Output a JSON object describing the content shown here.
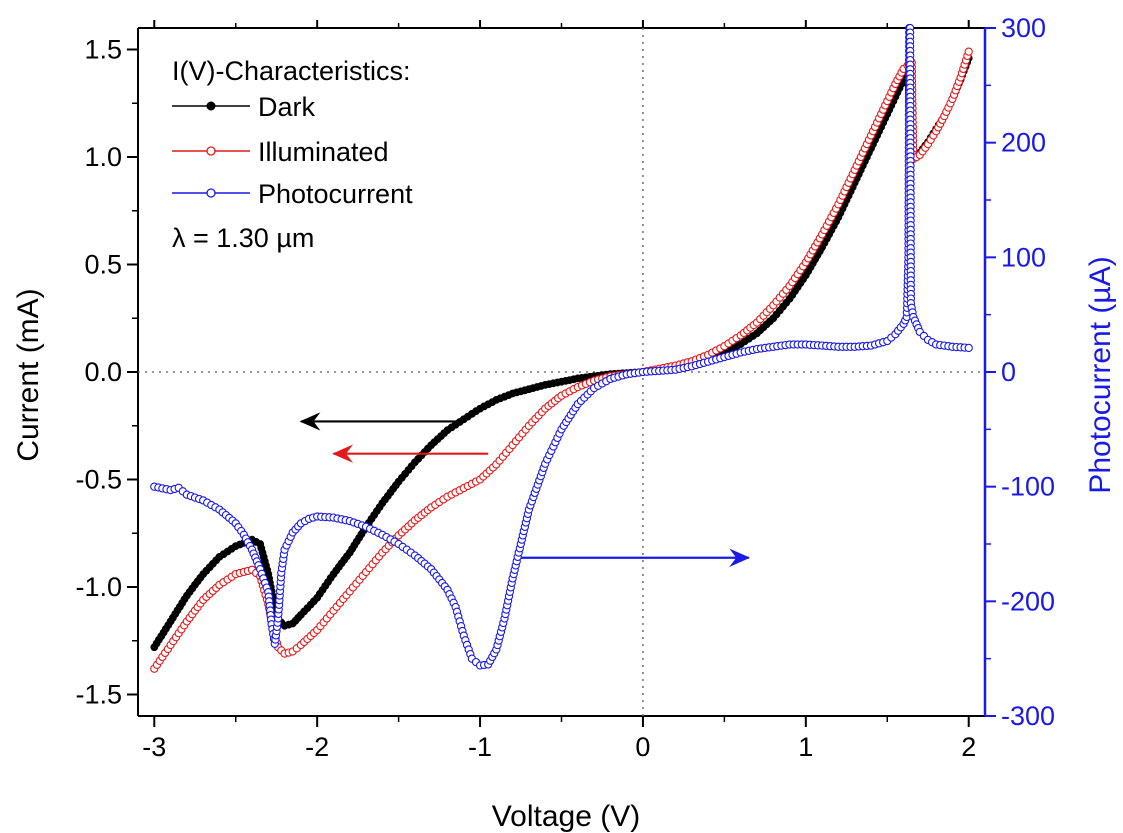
{
  "chart_data": {
    "type": "scatter",
    "xlabel": "Voltage (V)",
    "ylabel": "Current (mA)",
    "y2label": "Photocurrent (µA)",
    "xlim": [
      -3.1,
      2.1
    ],
    "ylim": [
      -1.6,
      1.6
    ],
    "y2lim": [
      -300,
      300
    ],
    "x_ticks": [
      -3,
      -2,
      -1,
      0,
      1,
      2
    ],
    "y_ticks": [
      -1.5,
      -1.0,
      -0.5,
      0.0,
      0.5,
      1.0,
      1.5
    ],
    "y2_ticks": [
      -300,
      -200,
      -100,
      0,
      100,
      200,
      300
    ],
    "x_tick_labels": [
      "-3",
      "-2",
      "-1",
      "0",
      "1",
      "2"
    ],
    "y_tick_labels": [
      "-1.5",
      "-1.0",
      "-0.5",
      "0.0",
      "0.5",
      "1.0",
      "1.5"
    ],
    "y2_tick_labels": [
      "-300",
      "-200",
      "-100",
      "0",
      "100",
      "200",
      "300"
    ],
    "legend": {
      "title": "I(V)-Characteristics:",
      "placement": "top-left",
      "entries": [
        "Dark",
        "Illuminated",
        "Photocurrent"
      ],
      "note": "λ = 1.30 µm"
    },
    "reference_lines": {
      "x0_dotted": true,
      "y0_dotted": true
    },
    "arrows": [
      {
        "series": "Dark",
        "axis": "left",
        "y": -0.23,
        "x_from": -1.1,
        "x_to": -2.1
      },
      {
        "series": "Illuminated",
        "axis": "left",
        "y": -0.38,
        "x_from": -0.95,
        "x_to": -1.9
      },
      {
        "series": "Photocurrent",
        "axis": "right",
        "y": -162,
        "x_from": -0.75,
        "x_to": 0.65
      }
    ],
    "series": [
      {
        "name": "Dark",
        "axis": "left",
        "color": "#000000",
        "marker": "filled-circle",
        "points": [
          [
            -3.0,
            -1.28
          ],
          [
            -2.9,
            -1.16
          ],
          [
            -2.8,
            -1.04
          ],
          [
            -2.7,
            -0.94
          ],
          [
            -2.6,
            -0.86
          ],
          [
            -2.5,
            -0.81
          ],
          [
            -2.4,
            -0.78
          ],
          [
            -2.35,
            -0.8
          ],
          [
            -2.3,
            -0.94
          ],
          [
            -2.27,
            -1.06
          ],
          [
            -2.24,
            -1.15
          ],
          [
            -2.2,
            -1.18
          ],
          [
            -2.15,
            -1.17
          ],
          [
            -2.1,
            -1.13
          ],
          [
            -2.0,
            -1.05
          ],
          [
            -1.9,
            -0.94
          ],
          [
            -1.8,
            -0.84
          ],
          [
            -1.7,
            -0.72
          ],
          [
            -1.6,
            -0.61
          ],
          [
            -1.5,
            -0.51
          ],
          [
            -1.4,
            -0.42
          ],
          [
            -1.3,
            -0.34
          ],
          [
            -1.2,
            -0.27
          ],
          [
            -1.1,
            -0.22
          ],
          [
            -1.0,
            -0.17
          ],
          [
            -0.9,
            -0.13
          ],
          [
            -0.8,
            -0.1
          ],
          [
            -0.7,
            -0.08
          ],
          [
            -0.6,
            -0.06
          ],
          [
            -0.5,
            -0.045
          ],
          [
            -0.4,
            -0.03
          ],
          [
            -0.3,
            -0.02
          ],
          [
            -0.2,
            -0.01
          ],
          [
            -0.1,
            -0.005
          ],
          [
            0.0,
            0.0
          ],
          [
            0.1,
            0.01
          ],
          [
            0.2,
            0.025
          ],
          [
            0.3,
            0.04
          ],
          [
            0.4,
            0.06
          ],
          [
            0.5,
            0.09
          ],
          [
            0.6,
            0.13
          ],
          [
            0.7,
            0.18
          ],
          [
            0.8,
            0.25
          ],
          [
            0.9,
            0.34
          ],
          [
            1.0,
            0.45
          ],
          [
            1.1,
            0.58
          ],
          [
            1.2,
            0.72
          ],
          [
            1.3,
            0.88
          ],
          [
            1.4,
            1.04
          ],
          [
            1.5,
            1.2
          ],
          [
            1.55,
            1.28
          ],
          [
            1.6,
            1.36
          ],
          [
            1.63,
            1.4
          ],
          [
            1.64,
            1.05
          ],
          [
            1.65,
            1.0
          ],
          [
            1.7,
            1.02
          ],
          [
            1.75,
            1.07
          ],
          [
            1.8,
            1.13
          ],
          [
            1.85,
            1.19
          ],
          [
            1.9,
            1.27
          ],
          [
            1.95,
            1.36
          ],
          [
            2.0,
            1.46
          ]
        ]
      },
      {
        "name": "Illuminated",
        "axis": "left",
        "color": "#e41a1a",
        "marker": "open-circle",
        "points": [
          [
            -3.0,
            -1.38
          ],
          [
            -2.9,
            -1.27
          ],
          [
            -2.8,
            -1.16
          ],
          [
            -2.7,
            -1.06
          ],
          [
            -2.6,
            -0.99
          ],
          [
            -2.5,
            -0.94
          ],
          [
            -2.4,
            -0.92
          ],
          [
            -2.35,
            -0.95
          ],
          [
            -2.3,
            -1.08
          ],
          [
            -2.27,
            -1.2
          ],
          [
            -2.24,
            -1.28
          ],
          [
            -2.2,
            -1.31
          ],
          [
            -2.15,
            -1.3
          ],
          [
            -2.1,
            -1.27
          ],
          [
            -2.0,
            -1.2
          ],
          [
            -1.9,
            -1.11
          ],
          [
            -1.8,
            -1.02
          ],
          [
            -1.7,
            -0.93
          ],
          [
            -1.6,
            -0.84
          ],
          [
            -1.5,
            -0.76
          ],
          [
            -1.4,
            -0.69
          ],
          [
            -1.3,
            -0.63
          ],
          [
            -1.2,
            -0.58
          ],
          [
            -1.1,
            -0.54
          ],
          [
            -1.0,
            -0.5
          ],
          [
            -0.9,
            -0.43
          ],
          [
            -0.8,
            -0.34
          ],
          [
            -0.7,
            -0.25
          ],
          [
            -0.6,
            -0.17
          ],
          [
            -0.5,
            -0.11
          ],
          [
            -0.4,
            -0.07
          ],
          [
            -0.3,
            -0.04
          ],
          [
            -0.2,
            -0.02
          ],
          [
            -0.1,
            -0.01
          ],
          [
            0.0,
            0.0
          ],
          [
            0.1,
            0.015
          ],
          [
            0.2,
            0.03
          ],
          [
            0.3,
            0.05
          ],
          [
            0.4,
            0.08
          ],
          [
            0.5,
            0.12
          ],
          [
            0.6,
            0.17
          ],
          [
            0.7,
            0.23
          ],
          [
            0.8,
            0.31
          ],
          [
            0.9,
            0.4
          ],
          [
            1.0,
            0.51
          ],
          [
            1.1,
            0.64
          ],
          [
            1.2,
            0.78
          ],
          [
            1.3,
            0.94
          ],
          [
            1.4,
            1.1
          ],
          [
            1.5,
            1.26
          ],
          [
            1.55,
            1.34
          ],
          [
            1.6,
            1.41
          ],
          [
            1.65,
            1.44
          ],
          [
            1.66,
            0.99
          ],
          [
            1.7,
            1.01
          ],
          [
            1.75,
            1.06
          ],
          [
            1.8,
            1.12
          ],
          [
            1.85,
            1.19
          ],
          [
            1.9,
            1.27
          ],
          [
            1.95,
            1.37
          ],
          [
            2.0,
            1.49
          ]
        ]
      },
      {
        "name": "Photocurrent",
        "axis": "right",
        "color": "#1a1ae6",
        "marker": "open-circle",
        "points": [
          [
            -3.0,
            -100
          ],
          [
            -2.9,
            -103
          ],
          [
            -2.85,
            -101
          ],
          [
            -2.8,
            -107
          ],
          [
            -2.7,
            -112
          ],
          [
            -2.6,
            -120
          ],
          [
            -2.5,
            -132
          ],
          [
            -2.45,
            -142
          ],
          [
            -2.4,
            -155
          ],
          [
            -2.35,
            -172
          ],
          [
            -2.3,
            -192
          ],
          [
            -2.28,
            -220
          ],
          [
            -2.26,
            -237
          ],
          [
            -2.24,
            -215
          ],
          [
            -2.22,
            -175
          ],
          [
            -2.2,
            -155
          ],
          [
            -2.15,
            -140
          ],
          [
            -2.1,
            -132
          ],
          [
            -2.05,
            -128
          ],
          [
            -2.0,
            -126
          ],
          [
            -1.9,
            -127
          ],
          [
            -1.8,
            -130
          ],
          [
            -1.7,
            -135
          ],
          [
            -1.6,
            -142
          ],
          [
            -1.5,
            -150
          ],
          [
            -1.4,
            -160
          ],
          [
            -1.3,
            -172
          ],
          [
            -1.2,
            -190
          ],
          [
            -1.15,
            -205
          ],
          [
            -1.1,
            -230
          ],
          [
            -1.05,
            -250
          ],
          [
            -1.0,
            -256
          ],
          [
            -0.95,
            -255
          ],
          [
            -0.9,
            -242
          ],
          [
            -0.85,
            -215
          ],
          [
            -0.8,
            -180
          ],
          [
            -0.75,
            -150
          ],
          [
            -0.7,
            -120
          ],
          [
            -0.6,
            -80
          ],
          [
            -0.5,
            -50
          ],
          [
            -0.4,
            -28
          ],
          [
            -0.3,
            -14
          ],
          [
            -0.2,
            -6
          ],
          [
            -0.1,
            -2
          ],
          [
            0.0,
            0
          ],
          [
            0.1,
            1
          ],
          [
            0.2,
            2
          ],
          [
            0.3,
            5
          ],
          [
            0.4,
            9
          ],
          [
            0.5,
            13
          ],
          [
            0.6,
            17
          ],
          [
            0.7,
            20
          ],
          [
            0.8,
            22
          ],
          [
            0.9,
            24
          ],
          [
            1.0,
            24
          ],
          [
            1.1,
            23
          ],
          [
            1.2,
            22
          ],
          [
            1.3,
            22
          ],
          [
            1.4,
            23
          ],
          [
            1.5,
            27
          ],
          [
            1.55,
            33
          ],
          [
            1.6,
            42
          ],
          [
            1.62,
            48
          ],
          [
            1.63,
            100
          ],
          [
            1.635,
            300
          ],
          [
            1.64,
            300
          ],
          [
            1.645,
            60
          ],
          [
            1.66,
            48
          ],
          [
            1.7,
            35
          ],
          [
            1.75,
            28
          ],
          [
            1.8,
            24
          ],
          [
            1.9,
            22
          ],
          [
            2.0,
            21
          ]
        ]
      }
    ]
  }
}
